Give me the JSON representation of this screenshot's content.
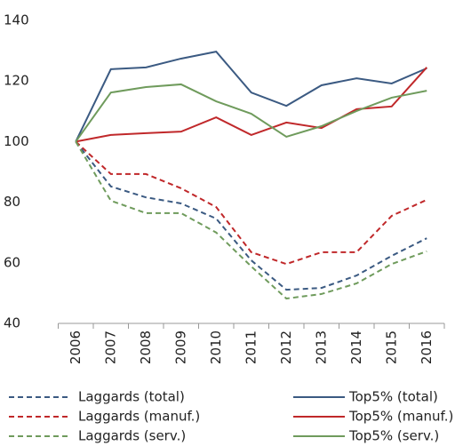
{
  "chart_data": {
    "type": "line",
    "categories": [
      "2006",
      "2007",
      "2008",
      "2009",
      "2010",
      "2011",
      "2012",
      "2013",
      "2014",
      "2015",
      "2016"
    ],
    "ylim": [
      40,
      140
    ],
    "yticks": [
      40,
      60,
      80,
      100,
      120,
      140
    ],
    "series": [
      {
        "name": "Laggards (total)",
        "color": "#3b5a82",
        "dashed": true,
        "values": [
          100,
          85.2,
          81.6,
          79.6,
          74.6,
          60.8,
          51.1,
          51.7,
          55.8,
          62.3,
          68.1
        ]
      },
      {
        "name": "Top5% (total)",
        "color": "#3b5a82",
        "dashed": false,
        "values": [
          100,
          123.9,
          124.5,
          127.4,
          129.7,
          116.2,
          111.8,
          118.6,
          120.9,
          119.2,
          124.2
        ]
      },
      {
        "name": "Laggards (manuf.)",
        "color": "#c0282a",
        "dashed": true,
        "values": [
          100,
          89.3,
          89.3,
          84.6,
          78.4,
          63.5,
          59.6,
          63.5,
          63.5,
          75.5,
          80.8
        ]
      },
      {
        "name": "Top5% (manuf.)",
        "color": "#c0282a",
        "dashed": false,
        "values": [
          100,
          102.2,
          102.8,
          103.3,
          108,
          102.2,
          106.3,
          104.5,
          110.7,
          111.6,
          124.5
        ]
      },
      {
        "name": "Laggards (serv.)",
        "color": "#6f9b5c",
        "dashed": true,
        "values": [
          100,
          80.5,
          76.4,
          76.4,
          70,
          58.8,
          48.2,
          49.7,
          53.2,
          59.6,
          63.8
        ]
      },
      {
        "name": "Top5% (serv.)",
        "color": "#6f9b5c",
        "dashed": false,
        "values": [
          100,
          116.2,
          118,
          118.9,
          113.3,
          109.2,
          101.6,
          105.1,
          110.1,
          114.5,
          116.8
        ]
      }
    ]
  }
}
